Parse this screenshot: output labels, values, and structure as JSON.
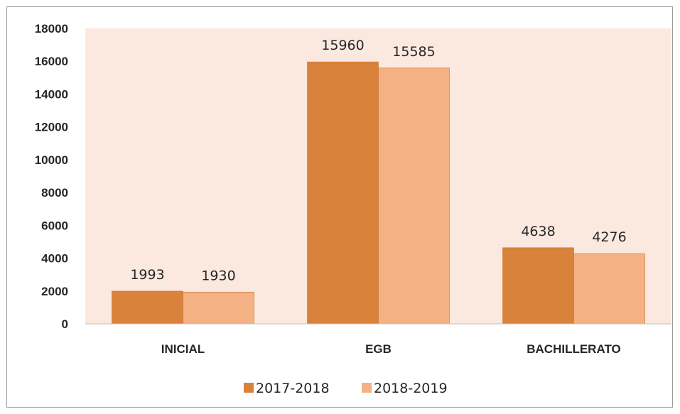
{
  "chart_data": {
    "type": "bar",
    "categories": [
      "INICIAL",
      "EGB",
      "BACHILLERATO"
    ],
    "series": [
      {
        "name": "2017-2018",
        "values": [
          1993,
          15960,
          4638
        ],
        "color": "#d9823b"
      },
      {
        "name": "2018-2019",
        "values": [
          1930,
          15585,
          4276
        ],
        "color": "#f4b183"
      }
    ],
    "title": "",
    "xlabel": "",
    "ylabel": "",
    "ylim": [
      0,
      18000
    ],
    "yticks": [
      0,
      2000,
      4000,
      6000,
      8000,
      10000,
      12000,
      14000,
      16000,
      18000
    ],
    "grid": false,
    "legend": "bottom",
    "plot_background": "#fbe9e0"
  }
}
